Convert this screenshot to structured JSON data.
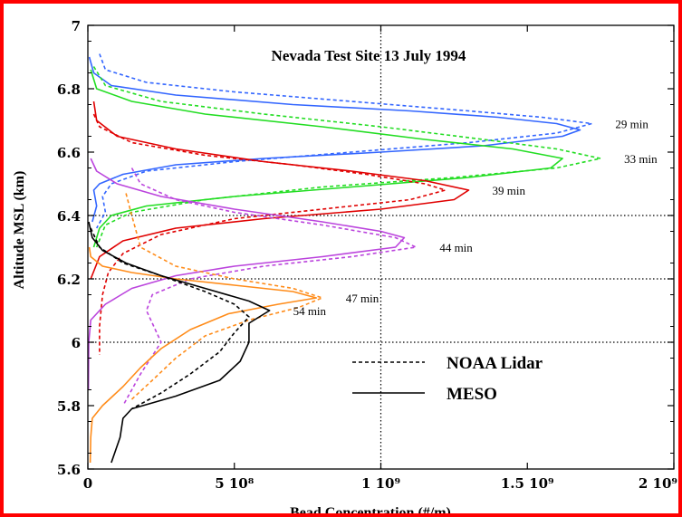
{
  "colors": {
    "frame": "#ff0000",
    "series": [
      "#3366ff",
      "#22dd22",
      "#e00000",
      "#bb44dd",
      "#ff8c1a",
      "#000000"
    ]
  },
  "chart_data": {
    "type": "line",
    "title": "Nevada Test Site 13 July 1994",
    "xlabel": "Bead Concentration (#/m)",
    "ylabel": "Altitude MSL (km)",
    "xlim": [
      0,
      2000000000.0
    ],
    "ylim": [
      5.6,
      7.0
    ],
    "x_ticks": [
      0,
      500000000.0,
      1000000000.0,
      1500000000.0,
      2000000000.0
    ],
    "x_tick_labels": [
      "0",
      "5 10⁸",
      "1 10⁹",
      "1.5 10⁹",
      "2 10⁹"
    ],
    "y_ticks": [
      5.6,
      5.8,
      6.0,
      6.2,
      6.4,
      6.6,
      6.8,
      7.0
    ],
    "y_tick_labels": [
      "5.6",
      "5.8",
      "6",
      "6.2",
      "6.4",
      "6.6",
      "6.8",
      "7"
    ],
    "grid": "dotted at x=1e9 and y=6.0, 6.2, 6.4",
    "legend": {
      "placement": "bottom-right",
      "entries": [
        {
          "label": "NOAA Lidar",
          "style": "dashed"
        },
        {
          "label": "MESO",
          "style": "solid"
        }
      ]
    },
    "series": [
      {
        "annotation": "29 min",
        "color": "#3366ff",
        "meso": [
          [
            5000000.0,
            6.9
          ],
          [
            20000000.0,
            6.85
          ],
          [
            80000000.0,
            6.81
          ],
          [
            300000000.0,
            6.78
          ],
          [
            700000000.0,
            6.75
          ],
          [
            1100000000.0,
            6.73
          ],
          [
            1400000000.0,
            6.71
          ],
          [
            1600000000.0,
            6.69
          ],
          [
            1680000000.0,
            6.67
          ],
          [
            1620000000.0,
            6.65
          ],
          [
            1350000000.0,
            6.62
          ],
          [
            1000000000.0,
            6.6
          ],
          [
            600000000.0,
            6.58
          ],
          [
            300000000.0,
            6.56
          ],
          [
            120000000.0,
            6.53
          ],
          [
            40000000.0,
            6.5
          ],
          [
            20000000.0,
            6.48
          ],
          [
            30000000.0,
            6.43
          ],
          [
            15000000.0,
            6.38
          ]
        ],
        "lidar": [
          [
            40000000.0,
            6.91
          ],
          [
            60000000.0,
            6.86
          ],
          [
            200000000.0,
            6.82
          ],
          [
            500000000.0,
            6.79
          ],
          [
            900000000.0,
            6.76
          ],
          [
            1300000000.0,
            6.73
          ],
          [
            1550000000.0,
            6.71
          ],
          [
            1720000000.0,
            6.69
          ],
          [
            1600000000.0,
            6.66
          ],
          [
            1300000000.0,
            6.63
          ],
          [
            900000000.0,
            6.6
          ],
          [
            500000000.0,
            6.57
          ],
          [
            200000000.0,
            6.54
          ],
          [
            80000000.0,
            6.5
          ],
          [
            50000000.0,
            6.46
          ],
          [
            60000000.0,
            6.41
          ],
          [
            30000000.0,
            6.36
          ]
        ]
      },
      {
        "annotation": "33 min",
        "color": "#22dd22",
        "meso": [
          [
            10000000.0,
            6.86
          ],
          [
            30000000.0,
            6.8
          ],
          [
            150000000.0,
            6.76
          ],
          [
            400000000.0,
            6.72
          ],
          [
            800000000.0,
            6.68
          ],
          [
            1150000000.0,
            6.64
          ],
          [
            1450000000.0,
            6.61
          ],
          [
            1620000000.0,
            6.58
          ],
          [
            1580000000.0,
            6.55
          ],
          [
            1300000000.0,
            6.52
          ],
          [
            900000000.0,
            6.49
          ],
          [
            500000000.0,
            6.46
          ],
          [
            200000000.0,
            6.43
          ],
          [
            80000000.0,
            6.4
          ],
          [
            40000000.0,
            6.36
          ],
          [
            20000000.0,
            6.3
          ]
        ],
        "lidar": [
          [
            20000000.0,
            6.87
          ],
          [
            60000000.0,
            6.81
          ],
          [
            250000000.0,
            6.76
          ],
          [
            600000000.0,
            6.72
          ],
          [
            1000000000.0,
            6.68
          ],
          [
            1350000000.0,
            6.64
          ],
          [
            1600000000.0,
            6.61
          ],
          [
            1750000000.0,
            6.58
          ],
          [
            1600000000.0,
            6.55
          ],
          [
            1250000000.0,
            6.52
          ],
          [
            800000000.0,
            6.49
          ],
          [
            400000000.0,
            6.45
          ],
          [
            150000000.0,
            6.41
          ],
          [
            60000000.0,
            6.37
          ],
          [
            30000000.0,
            6.3
          ]
        ]
      },
      {
        "annotation": "39 min",
        "color": "#e00000",
        "meso": [
          [
            20000000.0,
            6.76
          ],
          [
            30000000.0,
            6.7
          ],
          [
            100000000.0,
            6.65
          ],
          [
            300000000.0,
            6.61
          ],
          [
            600000000.0,
            6.57
          ],
          [
            900000000.0,
            6.54
          ],
          [
            1150000000.0,
            6.51
          ],
          [
            1300000000.0,
            6.48
          ],
          [
            1250000000.0,
            6.45
          ],
          [
            1000000000.0,
            6.42
          ],
          [
            600000000.0,
            6.39
          ],
          [
            300000000.0,
            6.36
          ],
          [
            120000000.0,
            6.32
          ],
          [
            40000000.0,
            6.27
          ],
          [
            10000000.0,
            6.2
          ]
        ],
        "lidar": [
          [
            20000000.0,
            6.72
          ],
          [
            40000000.0,
            6.68
          ],
          [
            150000000.0,
            6.63
          ],
          [
            400000000.0,
            6.59
          ],
          [
            700000000.0,
            6.56
          ],
          [
            950000000.0,
            6.53
          ],
          [
            1150000000.0,
            6.5
          ],
          [
            1220000000.0,
            6.48
          ],
          [
            1100000000.0,
            6.45
          ],
          [
            800000000.0,
            6.42
          ],
          [
            500000000.0,
            6.39
          ],
          [
            250000000.0,
            6.34
          ],
          [
            120000000.0,
            6.28
          ],
          [
            70000000.0,
            6.22
          ],
          [
            50000000.0,
            6.15
          ],
          [
            40000000.0,
            6.05
          ],
          [
            40000000.0,
            5.96
          ]
        ]
      },
      {
        "annotation": "44 min",
        "color": "#bb44dd",
        "meso": [
          [
            10000000.0,
            6.58
          ],
          [
            30000000.0,
            6.54
          ],
          [
            100000000.0,
            6.5
          ],
          [
            250000000.0,
            6.46
          ],
          [
            500000000.0,
            6.42
          ],
          [
            800000000.0,
            6.38
          ],
          [
            1000000000.0,
            6.35
          ],
          [
            1080000000.0,
            6.33
          ],
          [
            1050000000.0,
            6.3
          ],
          [
            800000000.0,
            6.27
          ],
          [
            500000000.0,
            6.24
          ],
          [
            300000000.0,
            6.21
          ],
          [
            150000000.0,
            6.17
          ],
          [
            60000000.0,
            6.12
          ],
          [
            10000000.0,
            6.07
          ],
          [
            3000000.0,
            6.0
          ],
          [
            2000000.0,
            5.85
          ]
        ],
        "lidar": [
          [
            150000000.0,
            6.55
          ],
          [
            180000000.0,
            6.5
          ],
          [
            300000000.0,
            6.45
          ],
          [
            500000000.0,
            6.41
          ],
          [
            800000000.0,
            6.37
          ],
          [
            1050000000.0,
            6.33
          ],
          [
            1120000000.0,
            6.3
          ],
          [
            900000000.0,
            6.27
          ],
          [
            600000000.0,
            6.24
          ],
          [
            350000000.0,
            6.2
          ],
          [
            220000000.0,
            6.15
          ],
          [
            200000000.0,
            6.1
          ],
          [
            250000000.0,
            6.0
          ],
          [
            180000000.0,
            5.9
          ],
          [
            120000000.0,
            5.8
          ]
        ]
      },
      {
        "annotation": "47 min",
        "color": "#ff8c1a",
        "meso": [
          [
            5000000.0,
            6.3
          ],
          [
            10000000.0,
            6.27
          ],
          [
            50000000.0,
            6.24
          ],
          [
            150000000.0,
            6.22
          ],
          [
            300000000.0,
            6.2
          ],
          [
            500000000.0,
            6.18
          ],
          [
            700000000.0,
            6.16
          ],
          [
            780000000.0,
            6.14
          ],
          [
            650000000.0,
            6.12
          ],
          [
            480000000.0,
            6.09
          ],
          [
            350000000.0,
            6.04
          ],
          [
            250000000.0,
            5.98
          ],
          [
            180000000.0,
            5.92
          ],
          [
            120000000.0,
            5.86
          ],
          [
            50000000.0,
            5.8
          ],
          [
            15000000.0,
            5.76
          ],
          [
            10000000.0,
            5.7
          ],
          [
            8000000.0,
            5.62
          ]
        ],
        "lidar": [
          [
            130000000.0,
            6.47
          ],
          [
            150000000.0,
            6.4
          ],
          [
            180000000.0,
            6.3
          ],
          [
            300000000.0,
            6.24
          ],
          [
            500000000.0,
            6.2
          ],
          [
            700000000.0,
            6.17
          ],
          [
            800000000.0,
            6.14
          ],
          [
            720000000.0,
            6.11
          ],
          [
            550000000.0,
            6.07
          ],
          [
            400000000.0,
            6.02
          ],
          [
            300000000.0,
            5.95
          ],
          [
            220000000.0,
            5.88
          ],
          [
            150000000.0,
            5.82
          ]
        ]
      },
      {
        "annotation": "54 min",
        "color": "#000000",
        "meso": [
          [
            3000000.0,
            6.38
          ],
          [
            15000000.0,
            6.33
          ],
          [
            50000000.0,
            6.29
          ],
          [
            130000000.0,
            6.25
          ],
          [
            250000000.0,
            6.21
          ],
          [
            400000000.0,
            6.17
          ],
          [
            550000000.0,
            6.13
          ],
          [
            620000000.0,
            6.1
          ],
          [
            550000000.0,
            6.06
          ],
          [
            550000000.0,
            6.0
          ],
          [
            520000000.0,
            5.94
          ],
          [
            450000000.0,
            5.88
          ],
          [
            300000000.0,
            5.83
          ],
          [
            150000000.0,
            5.79
          ],
          [
            120000000.0,
            5.76
          ],
          [
            110000000.0,
            5.7
          ],
          [
            80000000.0,
            5.62
          ]
        ],
        "lidar": [
          [
            10000000.0,
            6.36
          ],
          [
            40000000.0,
            6.3
          ],
          [
            120000000.0,
            6.25
          ],
          [
            250000000.0,
            6.21
          ],
          [
            400000000.0,
            6.16
          ],
          [
            500000000.0,
            6.12
          ],
          [
            550000000.0,
            6.08
          ],
          [
            500000000.0,
            6.03
          ],
          [
            450000000.0,
            5.97
          ],
          [
            350000000.0,
            5.9
          ],
          [
            250000000.0,
            5.84
          ],
          [
            150000000.0,
            5.79
          ]
        ]
      }
    ]
  }
}
